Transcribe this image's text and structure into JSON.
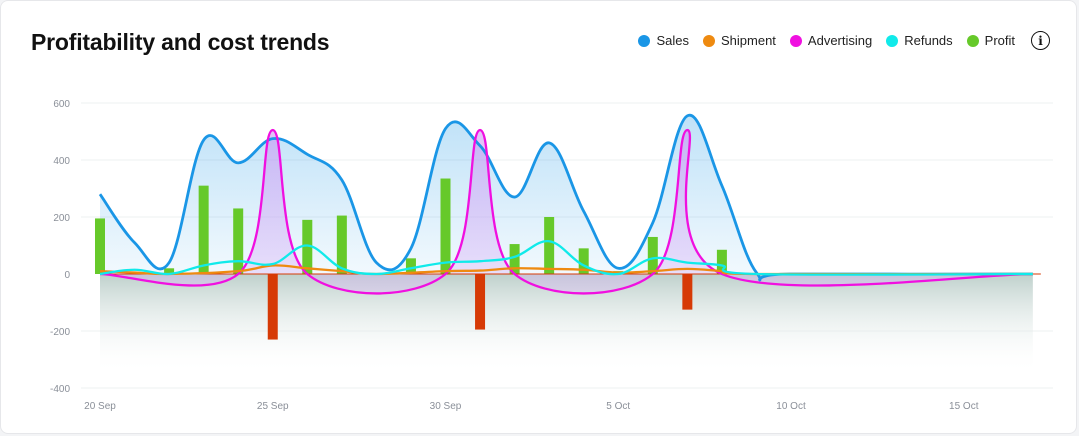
{
  "header": {
    "title": "Profitability and cost trends",
    "info_icon": "info-icon"
  },
  "legend": [
    {
      "label": "Sales",
      "color": "#1a96e6"
    },
    {
      "label": "Shipment",
      "color": "#ee8a10"
    },
    {
      "label": "Advertising",
      "color": "#f010e0"
    },
    {
      "label": "Refunds",
      "color": "#10eaea"
    },
    {
      "label": "Profit",
      "color": "#66c92a"
    }
  ],
  "chart_data": {
    "type": "line",
    "x_tick_labels": [
      "20 Sep",
      "25 Sep",
      "30 Sep",
      "5 Oct",
      "10 Oct",
      "15 Oct"
    ],
    "y_tick_labels": [
      "600",
      "400",
      "200",
      "0",
      "-200",
      "-400"
    ],
    "ylim": [
      -400,
      600
    ],
    "grid": true,
    "legend_position": "top-right",
    "series": [
      {
        "name": "Sales",
        "color": "#1a96e6",
        "type": "line",
        "points": [
          [
            "2023-09-20",
            280
          ],
          [
            "2023-09-21",
            110
          ],
          [
            "2023-09-22",
            40
          ],
          [
            "2023-09-23",
            470
          ],
          [
            "2023-09-24",
            390
          ],
          [
            "2023-09-25",
            475
          ],
          [
            "2023-09-26",
            420
          ],
          [
            "2023-09-27",
            330
          ],
          [
            "2023-09-28",
            40
          ],
          [
            "2023-09-29",
            90
          ],
          [
            "2023-09-30",
            510
          ],
          [
            "2023-10-01",
            450
          ],
          [
            "2023-10-02",
            270
          ],
          [
            "2023-10-03",
            460
          ],
          [
            "2023-10-04",
            220
          ],
          [
            "2023-10-05",
            20
          ],
          [
            "2023-10-06",
            180
          ],
          [
            "2023-10-07",
            555
          ],
          [
            "2023-10-08",
            310
          ],
          [
            "2023-10-09",
            5
          ],
          [
            "2023-10-10",
            0
          ],
          [
            "2023-10-17",
            0
          ]
        ]
      },
      {
        "name": "Shipment",
        "color": "#ee8a10",
        "type": "line",
        "points": [
          [
            "2023-09-20",
            10
          ],
          [
            "2023-09-21",
            5
          ],
          [
            "2023-09-22",
            0
          ],
          [
            "2023-09-24",
            10
          ],
          [
            "2023-09-25",
            30
          ],
          [
            "2023-09-26",
            20
          ],
          [
            "2023-09-27",
            10
          ],
          [
            "2023-09-28",
            0
          ],
          [
            "2023-09-30",
            10
          ],
          [
            "2023-10-01",
            12
          ],
          [
            "2023-10-02",
            20
          ],
          [
            "2023-10-03",
            18
          ],
          [
            "2023-10-04",
            15
          ],
          [
            "2023-10-05",
            5
          ],
          [
            "2023-10-06",
            10
          ],
          [
            "2023-10-07",
            18
          ],
          [
            "2023-10-08",
            10
          ],
          [
            "2023-10-09",
            0
          ],
          [
            "2023-10-17",
            0
          ]
        ]
      },
      {
        "name": "Advertising",
        "color": "#f010e0",
        "type": "line",
        "points": [
          [
            "2023-09-20",
            0
          ],
          [
            "2023-09-24",
            0
          ],
          [
            "2023-09-25",
            505
          ],
          [
            "2023-09-26",
            0
          ],
          [
            "2023-09-30",
            0
          ],
          [
            "2023-10-01",
            505
          ],
          [
            "2023-10-02",
            0
          ],
          [
            "2023-10-06",
            0
          ],
          [
            "2023-10-07",
            505
          ],
          [
            "2023-10-08",
            0
          ],
          [
            "2023-10-17",
            0
          ]
        ]
      },
      {
        "name": "Refunds",
        "color": "#10eaea",
        "type": "line",
        "points": [
          [
            "2023-09-20",
            0
          ],
          [
            "2023-09-21",
            15
          ],
          [
            "2023-09-22",
            0
          ],
          [
            "2023-09-23",
            30
          ],
          [
            "2023-09-24",
            45
          ],
          [
            "2023-09-25",
            35
          ],
          [
            "2023-09-26",
            100
          ],
          [
            "2023-09-27",
            20
          ],
          [
            "2023-09-28",
            0
          ],
          [
            "2023-09-29",
            20
          ],
          [
            "2023-09-30",
            40
          ],
          [
            "2023-10-01",
            45
          ],
          [
            "2023-10-02",
            60
          ],
          [
            "2023-10-03",
            115
          ],
          [
            "2023-10-04",
            30
          ],
          [
            "2023-10-05",
            0
          ],
          [
            "2023-10-06",
            55
          ],
          [
            "2023-10-07",
            40
          ],
          [
            "2023-10-08",
            30
          ],
          [
            "2023-10-09",
            0
          ],
          [
            "2023-10-17",
            0
          ]
        ]
      },
      {
        "name": "Profit",
        "color": "#66c92a",
        "negative_color": "#d63a06",
        "type": "bar",
        "points": [
          [
            "2023-09-20",
            195
          ],
          [
            "2023-09-22",
            20
          ],
          [
            "2023-09-23",
            310
          ],
          [
            "2023-09-24",
            230
          ],
          [
            "2023-09-25",
            -230
          ],
          [
            "2023-09-26",
            190
          ],
          [
            "2023-09-27",
            205
          ],
          [
            "2023-09-29",
            55
          ],
          [
            "2023-09-30",
            335
          ],
          [
            "2023-10-01",
            -195
          ],
          [
            "2023-10-02",
            105
          ],
          [
            "2023-10-03",
            200
          ],
          [
            "2023-10-04",
            90
          ],
          [
            "2023-10-05",
            10
          ],
          [
            "2023-10-06",
            130
          ],
          [
            "2023-10-07",
            -125
          ],
          [
            "2023-10-08",
            85
          ]
        ]
      }
    ]
  }
}
